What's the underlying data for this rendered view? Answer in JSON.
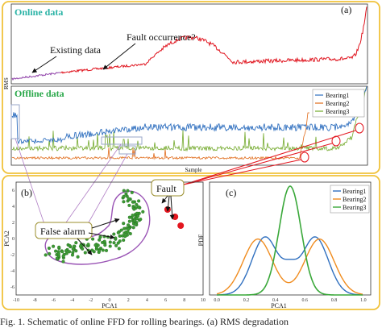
{
  "figure": {
    "panel_a_label": "(a)",
    "panel_b_label": "(b)",
    "panel_c_label": "(c)",
    "online_title": "Online data",
    "offline_title": "Offline  data",
    "rms_label": "RMS",
    "sample_label": "Sample",
    "existing_data_label": "Existing data",
    "fault_occurrence_label": "Fault occurrence?",
    "fault_label": "Fault",
    "false_alarm_label": "False alarm",
    "caption": "Fig. 1.   Schematic of online FFD for rolling bearings. (a) RMS degradation",
    "colors": {
      "frame": "#f0c23b",
      "online_title": "#2bb3a6",
      "offline_title": "#2aa84a",
      "online_existing": "#8e3fa8",
      "online_new": "#e0141e",
      "bearing1": "#2f6fbf",
      "bearing2": "#e06a18",
      "bearing3": "#72a92a",
      "pca_points": "#3c9a34",
      "pca_outline": "#9a54b5",
      "fault_points": "#e3161f",
      "pdf_b1": "#2f6fbf",
      "pdf_b2": "#f08c1f",
      "pdf_b3": "#3aa83a"
    }
  },
  "chart_data": [
    {
      "type": "scatter",
      "panel": "(b)",
      "xlabel": "PCA1",
      "ylabel": "PCA2",
      "x_ticks": [
        "-10",
        "-8",
        "-6",
        "-4",
        "-2",
        "0",
        "2",
        "4",
        "6",
        "8",
        "10"
      ],
      "y_ticks": [
        "6",
        "4",
        "2",
        "0",
        "-2",
        "-4",
        "-6"
      ],
      "xlim": [
        -10,
        10
      ],
      "ylim": [
        -7,
        7
      ],
      "fault_points": [
        [
          6.2,
          3.6
        ],
        [
          7.0,
          2.7
        ],
        [
          7.6,
          1.6
        ]
      ]
    },
    {
      "type": "line",
      "panel": "(c)",
      "xlabel": "PCA1",
      "ylabel": "PDF",
      "x_ticks": [
        "0.0",
        "0.2",
        "0.4",
        "0.6",
        "0.8",
        "1.0"
      ],
      "xlim": [
        -0.05,
        1.05
      ],
      "series": [
        {
          "name": "Bearing1",
          "color_key": "pdf_b1"
        },
        {
          "name": "Bearing2",
          "color_key": "pdf_b2"
        },
        {
          "name": "Bearing3",
          "color_key": "pdf_b3"
        }
      ]
    }
  ]
}
